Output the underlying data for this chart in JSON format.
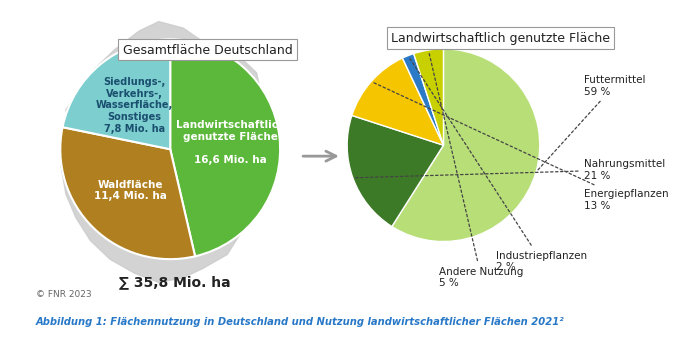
{
  "left_pie": {
    "values": [
      16.6,
      11.4,
      7.8
    ],
    "colors": [
      "#5cb83a",
      "#b08020",
      "#7dcece"
    ],
    "startangle": 90,
    "title": "Gesamtfläche Deutschland",
    "total_label": "∑ 35,8 Mio. ha",
    "label_landwirt": "Landwirtschaftlich\ngenutzte Fläche\n\n16,6 Mio. ha",
    "label_wald": "Waldfläche\n11,4 Mio. ha",
    "label_siedlung": "Siedlungs-,\nVerkehrs-,\nWasserfläche,\nSonstiges\n7,8 Mio. ha"
  },
  "right_pie": {
    "values": [
      59,
      21,
      13,
      2,
      5
    ],
    "colors": [
      "#b8de78",
      "#3d7a28",
      "#f5c500",
      "#2a7ac8",
      "#c8d000"
    ],
    "startangle": 90,
    "title": "Landwirtschaftlich genutzte Fläche",
    "annotations": [
      {
        "label": "Futtermittel\n59 %",
        "xt": 1.55,
        "yt": 0.68,
        "ha": "left",
        "va": "center"
      },
      {
        "label": "Nahrungsmittel\n21 %",
        "xt": 1.55,
        "yt": -0.28,
        "ha": "left",
        "va": "center"
      },
      {
        "label": "Energiepflanzen\n13 %",
        "xt": 1.55,
        "yt": -0.62,
        "ha": "left",
        "va": "center"
      },
      {
        "label": "Industriepflanzen\n2 %",
        "xt": 0.55,
        "yt": -1.2,
        "ha": "left",
        "va": "top"
      },
      {
        "label": "Andere Nutzung\n5 %",
        "xt": -0.1,
        "yt": -1.38,
        "ha": "left",
        "va": "top"
      }
    ]
  },
  "arrow_color": "#999999",
  "background_color": "#ffffff",
  "germany_map_color": "#cccccc",
  "title_fontsize": 9,
  "label_fontsize": 8,
  "caption": "Abbildung 1: Flächennutzung in Deutschland und Nutzung landwirtschaftlicher Flächen 2021²",
  "caption_color": "#2878c8",
  "fnr_label": "© FNR 2023"
}
